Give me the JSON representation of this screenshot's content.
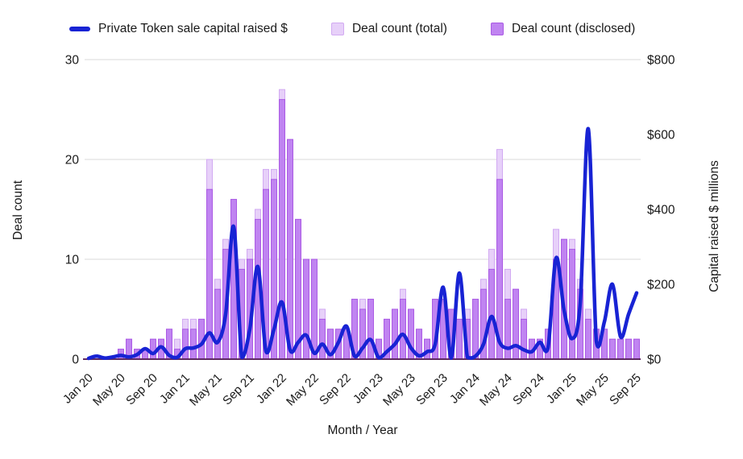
{
  "legend": [
    {
      "label": "Private Token sale capital raised $",
      "type": "line",
      "color": "#1823d4"
    },
    {
      "label": "Deal count (total)",
      "type": "box",
      "color": "#e7d0f9",
      "stroke": "#d2aaf2"
    },
    {
      "label": "Deal count (disclosed)",
      "type": "box",
      "color": "#c084f1",
      "stroke": "#aa5ae4"
    }
  ],
  "axes": {
    "left_title": "Deal count",
    "right_title": "Capital raised $ millions",
    "bottom_title": "Month / Year",
    "left_ticks": [
      0,
      10,
      20,
      30
    ],
    "right_ticks": [
      "$0",
      "$200",
      "$400",
      "$600",
      "$800"
    ],
    "left_range": [
      0,
      30
    ],
    "right_range": [
      0,
      800
    ],
    "grid_color": "#d9d9d9",
    "baseline_color": "#5e2a62"
  },
  "chart_data": {
    "type": "combo-bar-line",
    "title": "",
    "xlabel": "Month / Year",
    "ylabel_left": "Deal count",
    "ylabel_right": "Capital raised $ millions",
    "x": [
      "Jan 20",
      "Feb 20",
      "Mar 20",
      "Apr 20",
      "May 20",
      "Jun 20",
      "Jul 20",
      "Aug 20",
      "Sep 20",
      "Oct 20",
      "Nov 20",
      "Dec 20",
      "Jan 21",
      "Feb 21",
      "Mar 21",
      "Apr 21",
      "May 21",
      "Jun 21",
      "Jul 21",
      "Aug 21",
      "Sep 21",
      "Oct 21",
      "Nov 21",
      "Dec 21",
      "Jan 22",
      "Feb 22",
      "Mar 22",
      "Apr 22",
      "May 22",
      "Jun 22",
      "Jul 22",
      "Aug 22",
      "Sep 22",
      "Oct 22",
      "Nov 22",
      "Dec 22",
      "Jan 23",
      "Feb 23",
      "Mar 23",
      "Apr 23",
      "May 23",
      "Jun 23",
      "Jul 23",
      "Aug 23",
      "Sep 23",
      "Oct 23",
      "Nov 23",
      "Dec 23",
      "Jan 24",
      "Feb 24",
      "Mar 24",
      "Apr 24",
      "May 24",
      "Jun 24",
      "Jul 24",
      "Aug 24",
      "Sep 24",
      "Oct 24",
      "Nov 24",
      "Dec 24",
      "Jan 25",
      "Feb 25",
      "Mar 25",
      "Apr 25",
      "May 25",
      "Jun 25",
      "Jul 25",
      "Aug 25",
      "Sep 25"
    ],
    "x_tick_every": 4,
    "series": [
      {
        "name": "Deal count (total)",
        "type": "bar",
        "axis": "left",
        "values": [
          0,
          0,
          0,
          0,
          1,
          2,
          1,
          1,
          2,
          2,
          3,
          2,
          4,
          4,
          4,
          20,
          8,
          12,
          16,
          10,
          11,
          15,
          19,
          19,
          27,
          22,
          14,
          10,
          10,
          5,
          3,
          3,
          3,
          6,
          6,
          6,
          2,
          4,
          5,
          7,
          5,
          3,
          2,
          6,
          6,
          5,
          4,
          5,
          6,
          8,
          11,
          21,
          9,
          7,
          5,
          2,
          2,
          3,
          13,
          12,
          12,
          8,
          5,
          3,
          3,
          2,
          2,
          2,
          2
        ]
      },
      {
        "name": "Deal count (disclosed)",
        "type": "bar",
        "axis": "left",
        "values": [
          0,
          0,
          0,
          0,
          1,
          2,
          1,
          1,
          2,
          2,
          3,
          1,
          3,
          3,
          4,
          17,
          7,
          11,
          16,
          9,
          10,
          14,
          17,
          18,
          26,
          22,
          14,
          10,
          10,
          4,
          3,
          3,
          3,
          6,
          5,
          6,
          2,
          4,
          5,
          6,
          5,
          3,
          2,
          6,
          6,
          5,
          4,
          4,
          6,
          7,
          9,
          18,
          6,
          7,
          4,
          2,
          2,
          3,
          10,
          12,
          11,
          7,
          4,
          3,
          3,
          2,
          2,
          2,
          2
        ]
      },
      {
        "name": "Private Token sale capital raised $",
        "type": "line",
        "axis": "right",
        "values": [
          2,
          8,
          3,
          6,
          10,
          6,
          12,
          28,
          15,
          33,
          10,
          5,
          28,
          30,
          40,
          70,
          45,
          120,
          354,
          5,
          80,
          247,
          21,
          80,
          152,
          24,
          45,
          64,
          16,
          40,
          12,
          45,
          88,
          8,
          30,
          52,
          4,
          20,
          40,
          66,
          30,
          9,
          20,
          40,
          192,
          3,
          230,
          5,
          8,
          40,
          114,
          45,
          29,
          36,
          25,
          20,
          45,
          30,
          270,
          130,
          55,
          150,
          615,
          48,
          100,
          200,
          60,
          120,
          177
        ]
      }
    ],
    "left_axis_range": [
      0,
      30
    ],
    "right_axis_range": [
      0,
      800
    ],
    "grid": true,
    "legend_position": "top"
  }
}
